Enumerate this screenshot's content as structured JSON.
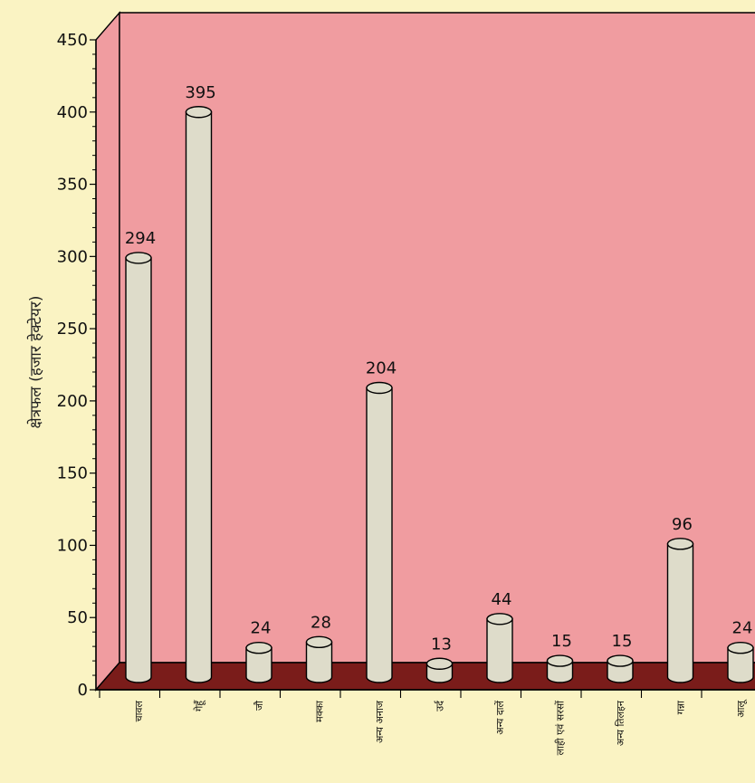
{
  "chart_data": {
    "type": "bar",
    "ylabel": "क्षेत्रफल (हजार हेक्टेयर)",
    "ylim": [
      0,
      450
    ],
    "yticks": [
      0,
      50,
      100,
      150,
      200,
      250,
      300,
      350,
      400,
      450
    ],
    "categories": [
      "चावल",
      "गेहूँ",
      "जौ",
      "मक्का",
      "अन्य अनाज",
      "उर्द",
      "अन्य दालें",
      "लाही एवं सरसों",
      "अन्य तिलहन",
      "गन्ना",
      "आलू"
    ],
    "values": [
      294,
      395,
      24,
      28,
      204,
      13,
      44,
      15,
      15,
      96,
      24
    ],
    "value_labels": [
      "294",
      "395",
      "24",
      "28",
      "204",
      "13",
      "44",
      "15",
      "15",
      "96",
      "24"
    ],
    "colors": {
      "background": "#faf3c3",
      "back_wall": "#f09ca0",
      "floor": "#7a1c1a",
      "bar_fill": "#dedcca"
    }
  }
}
